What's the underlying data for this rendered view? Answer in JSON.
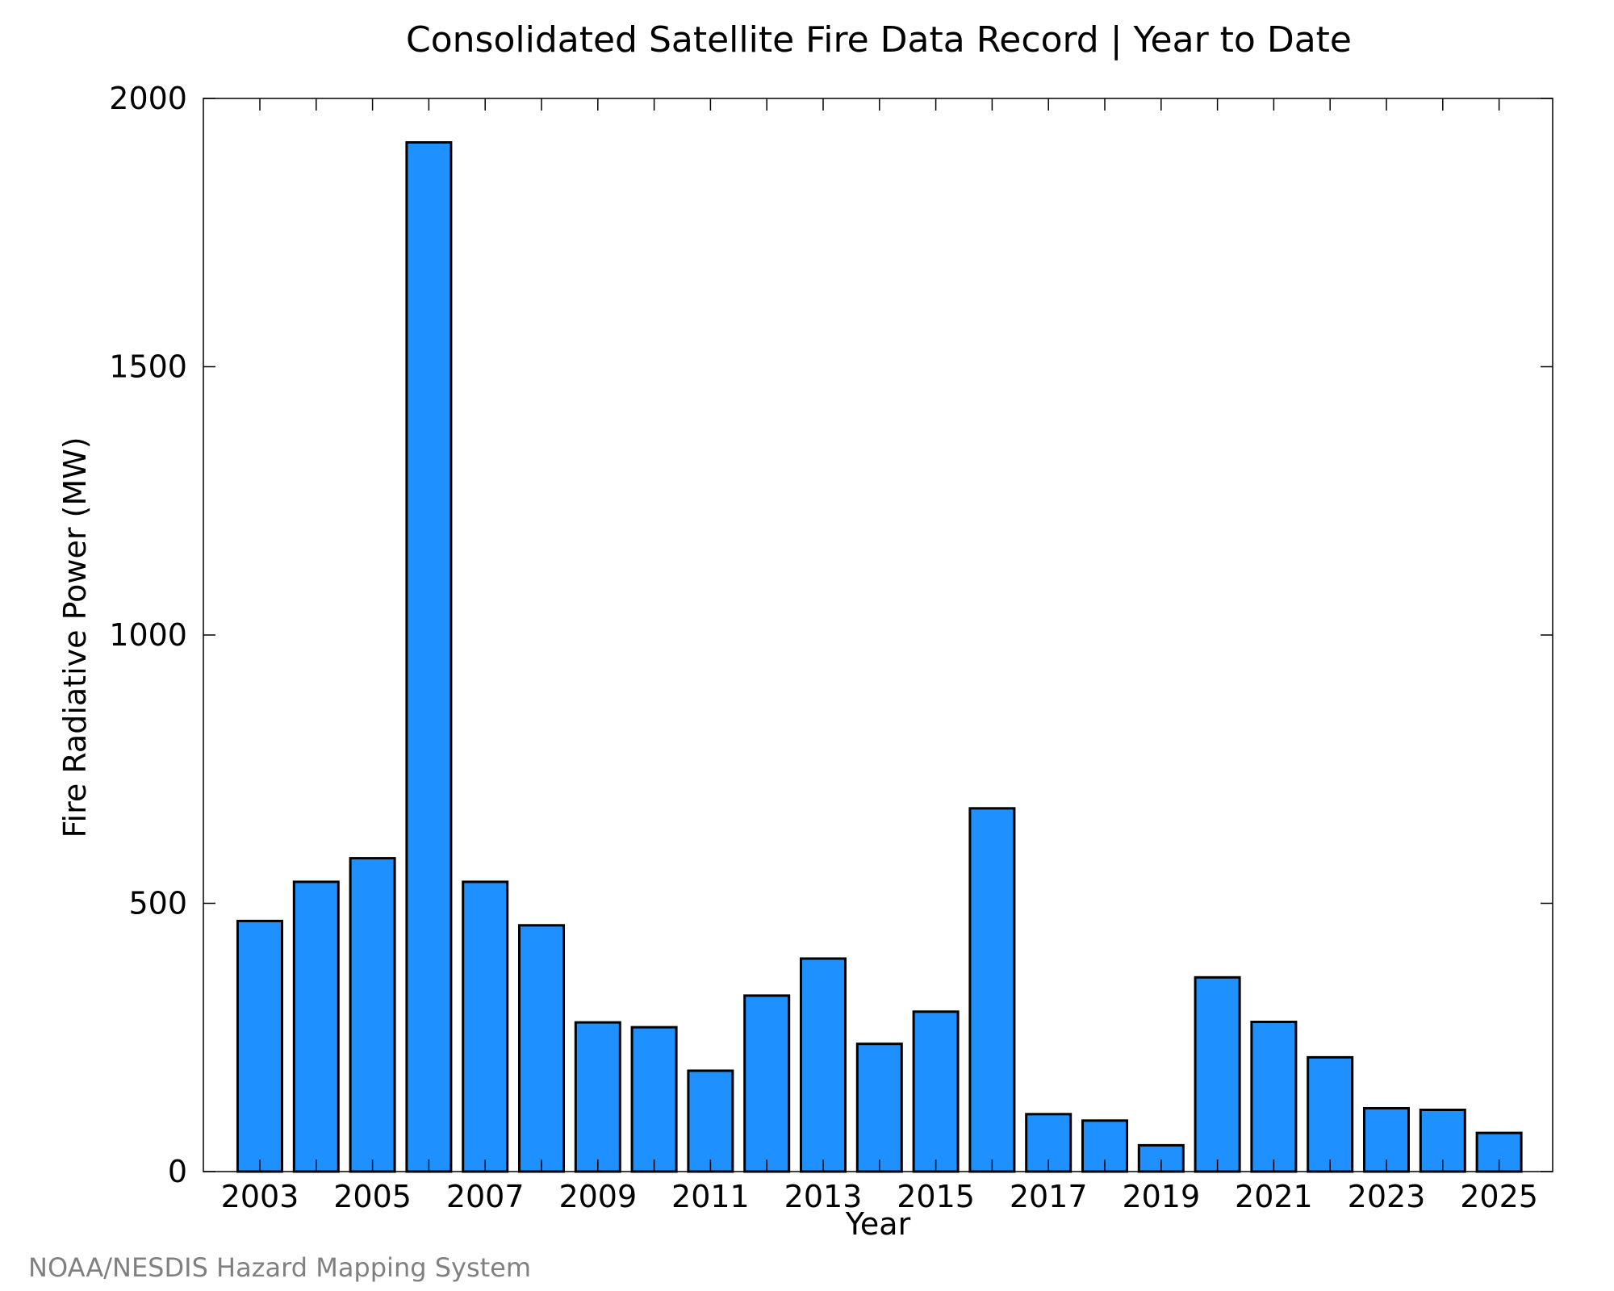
{
  "chart_data": {
    "type": "bar",
    "title": "Consolidated Satellite Fire Data Record | Year to Date",
    "xlabel": "Year",
    "ylabel": "Fire Radiative Power (MW)",
    "categories": [
      "2003",
      "2004",
      "2005",
      "2006",
      "2007",
      "2008",
      "2009",
      "2010",
      "2011",
      "2012",
      "2013",
      "2014",
      "2015",
      "2016",
      "2017",
      "2018",
      "2019",
      "2020",
      "2021",
      "2022",
      "2023",
      "2024",
      "2025"
    ],
    "values": [
      467,
      540,
      584,
      1918,
      540,
      459,
      278,
      269,
      188,
      328,
      397,
      238,
      298,
      677,
      107,
      95,
      49,
      362,
      279,
      213,
      118,
      115,
      72
    ],
    "x_tick_labels": [
      "2003",
      "2005",
      "2007",
      "2009",
      "2011",
      "2013",
      "2015",
      "2017",
      "2019",
      "2021",
      "2023",
      "2025"
    ],
    "y_tick_labels": [
      "0",
      "500",
      "1000",
      "1500",
      "2000"
    ],
    "y_ticks": [
      0,
      500,
      1000,
      1500,
      2000
    ],
    "ylim": [
      0,
      2000
    ],
    "grid": false,
    "legend": "none",
    "bar_color": "#1e90ff",
    "bar_edge_color": "#000000"
  },
  "footer": {
    "credit": "NOAA/NESDIS Hazard Mapping System"
  }
}
